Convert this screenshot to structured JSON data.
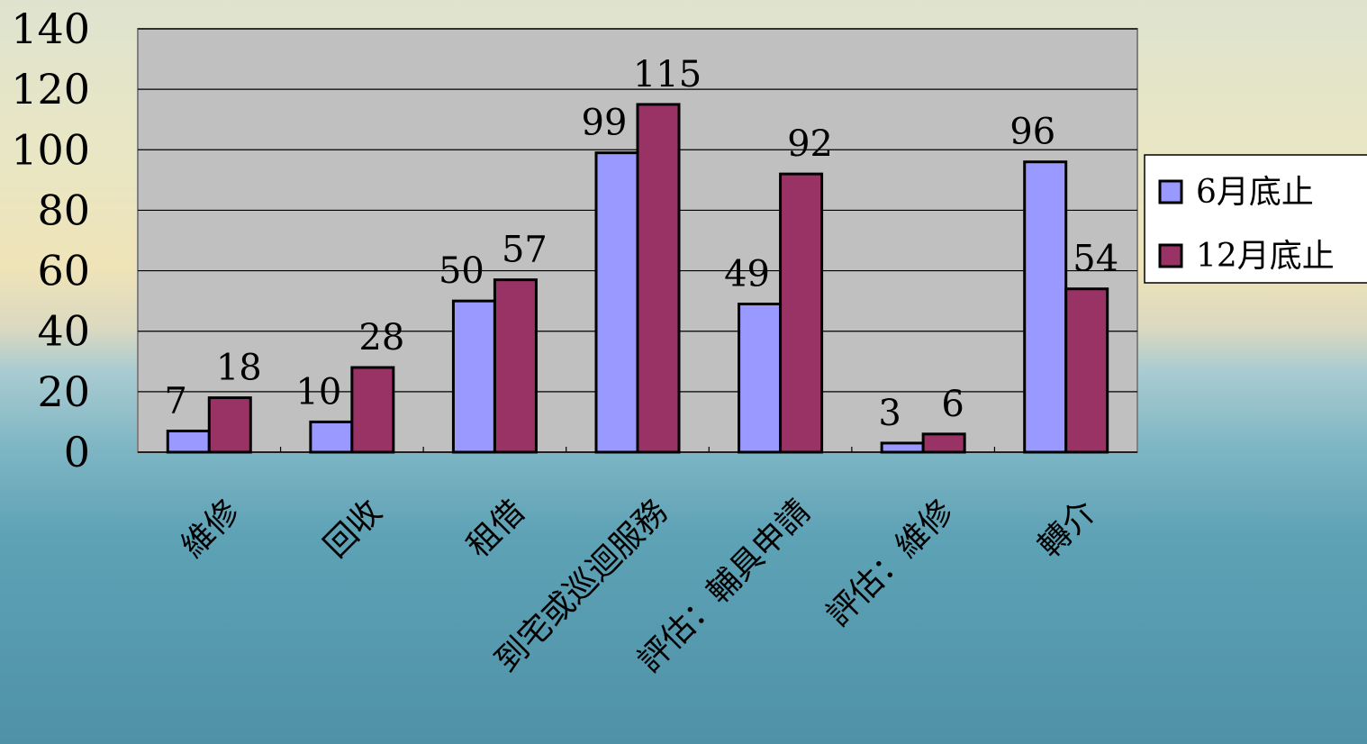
{
  "chart_data": {
    "type": "bar",
    "categories": [
      "維修",
      "回收",
      "租借",
      "到宅或巡迴服務",
      "評估：輔具申請",
      "評估：維修",
      "轉介"
    ],
    "series": [
      {
        "name": "6月底止",
        "values": [
          7,
          10,
          50,
          99,
          49,
          3,
          96
        ],
        "color": "#9999ff"
      },
      {
        "name": "12月底止",
        "values": [
          18,
          28,
          57,
          115,
          92,
          6,
          54
        ],
        "color": "#993366"
      }
    ],
    "y_ticks": [
      "0",
      "20",
      "40",
      "60",
      "80",
      "100",
      "120",
      "140"
    ],
    "ylim": [
      0,
      140
    ],
    "grid": true,
    "plot_background": "#c0c0c0",
    "legend_position": "right"
  }
}
